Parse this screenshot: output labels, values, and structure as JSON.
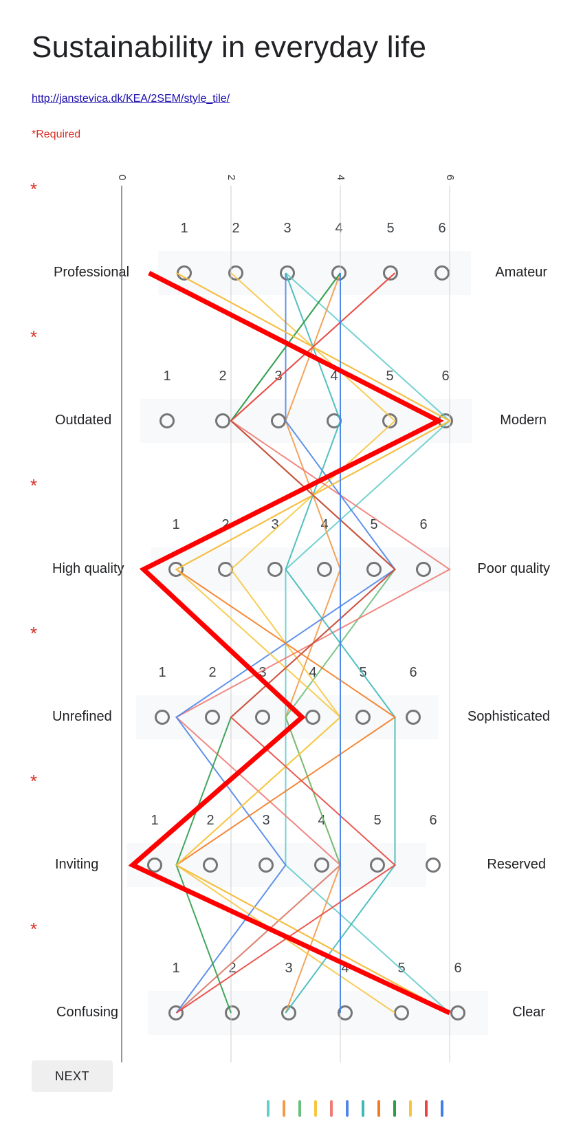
{
  "form": {
    "title": "Sustainability in everyday life",
    "link": "http://janstevica.dk/KEA/2SEM/style_tile/",
    "required_note": "*Required",
    "required_star": "*",
    "next_label": "NEXT"
  },
  "questions": [
    {
      "left": "Professional",
      "right": "Amateur",
      "scale": [
        "1",
        "2",
        "3",
        "4",
        "5",
        "6"
      ]
    },
    {
      "left": "Outdated",
      "right": "Modern",
      "scale": [
        "1",
        "2",
        "3",
        "4",
        "5",
        "6"
      ]
    },
    {
      "left": "High quality",
      "right": "Poor quality",
      "scale": [
        "1",
        "2",
        "3",
        "4",
        "5",
        "6"
      ]
    },
    {
      "left": "Unrefined",
      "right": "Sophisticated",
      "scale": [
        "1",
        "2",
        "3",
        "4",
        "5",
        "6"
      ]
    },
    {
      "left": "Inviting",
      "right": "Reserved",
      "scale": [
        "1",
        "2",
        "3",
        "4",
        "5",
        "6"
      ]
    },
    {
      "left": "Confusing",
      "right": "Clear",
      "scale": [
        "1",
        "2",
        "3",
        "4",
        "5",
        "6"
      ]
    }
  ],
  "chart_data": {
    "type": "line",
    "x_axis_ticks": [
      "0",
      "2",
      "4",
      "6"
    ],
    "xlim": [
      0,
      6
    ],
    "categories": [
      "Professional–Amateur",
      "Outdated–Modern",
      "High quality–Poor quality",
      "Unrefined–Sophisticated",
      "Inviting–Reserved",
      "Confusing–Clear"
    ],
    "series": [
      {
        "color": "#66cccc",
        "values": [
          3,
          6,
          3,
          3,
          3,
          6
        ]
      },
      {
        "color": "#f09a4a",
        "values": [
          4,
          3,
          4,
          3,
          4,
          3
        ]
      },
      {
        "color": "#6abf7b",
        "values": [
          4,
          2,
          5,
          3,
          4,
          1
        ]
      },
      {
        "color": "#f7c744",
        "values": [
          2,
          5,
          2,
          4,
          1,
          5
        ]
      },
      {
        "color": "#ee7b74",
        "values": [
          5,
          2,
          6,
          1,
          4,
          1
        ]
      },
      {
        "color": "#4f86e8",
        "values": [
          3,
          3,
          5,
          1,
          3,
          1
        ]
      },
      {
        "color": "#3fb8b8",
        "values": [
          3,
          4,
          3,
          5,
          5,
          3
        ]
      },
      {
        "color": "#f47a1f",
        "values": [
          1,
          6,
          1,
          5,
          1,
          6
        ]
      },
      {
        "color": "#2e9c4a",
        "values": [
          4,
          2,
          5,
          2,
          1,
          2
        ]
      },
      {
        "color": "#f5c842",
        "values": [
          1,
          6,
          1,
          4,
          1,
          6
        ]
      },
      {
        "color": "#e8463e",
        "values": [
          5,
          2,
          5,
          2,
          5,
          1
        ]
      },
      {
        "color": "#3f7fe8",
        "values": [
          4,
          4,
          4,
          4,
          4,
          4
        ]
      },
      {
        "color": "#ff0000",
        "values": [
          0.5,
          5.8,
          0.4,
          3.3,
          0.2,
          6
        ]
      }
    ]
  }
}
